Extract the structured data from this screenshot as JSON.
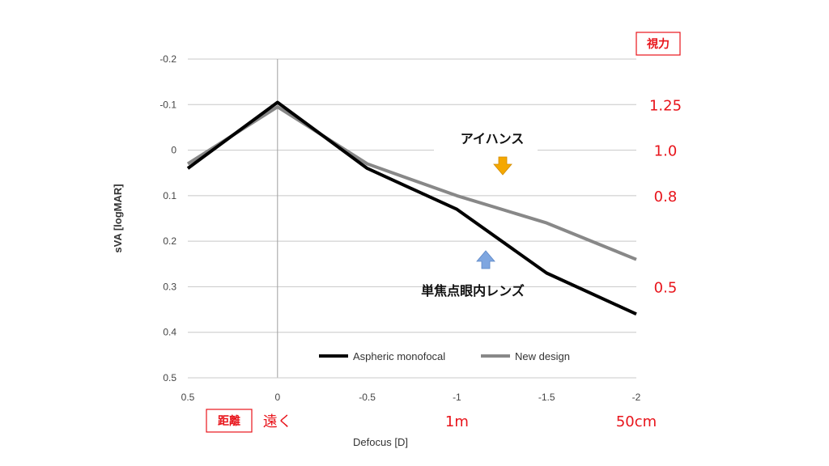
{
  "chart_data": {
    "type": "line",
    "xlabel": "Defocus [D]",
    "ylabel": "sVA [logMAR]",
    "xlim": [
      0.5,
      -2
    ],
    "ylim": [
      -0.2,
      0.5
    ],
    "y_inverted": true,
    "x_ticks": [
      "0.5",
      "0",
      "-0.5",
      "-1",
      "-1.5",
      "-2"
    ],
    "x_tick_values": [
      0.5,
      0,
      -0.5,
      -1,
      -1.5,
      -2
    ],
    "y_ticks": [
      "-0.2",
      "-0.1",
      "0",
      "0.1",
      "0.2",
      "0.3",
      "0.4",
      "0.5"
    ],
    "y_tick_values": [
      -0.2,
      -0.1,
      0,
      0.1,
      0.2,
      0.3,
      0.4,
      0.5
    ],
    "grid": "horizontal",
    "legend_position": "bottom-center",
    "series": [
      {
        "name": "Aspheric monofocal",
        "color": "#000000",
        "x": [
          0.5,
          0,
          -0.5,
          -1,
          -1.5,
          -2
        ],
        "y": [
          0.04,
          -0.105,
          0.04,
          0.13,
          0.27,
          0.36
        ]
      },
      {
        "name": "New design",
        "color": "#888888",
        "x": [
          0.5,
          0,
          -0.5,
          -1,
          -1.5,
          -2
        ],
        "y": [
          0.03,
          -0.095,
          0.03,
          0.1,
          0.16,
          0.24
        ]
      }
    ],
    "secondary_axis": {
      "title": "視力",
      "labels": [
        {
          "text": "1.25",
          "logmar": -0.1
        },
        {
          "text": "1.0",
          "logmar": 0
        },
        {
          "text": "0.8",
          "logmar": 0.1
        },
        {
          "text": "0.5",
          "logmar": 0.3
        }
      ]
    },
    "distance_labels": {
      "title": "距離",
      "labels": [
        {
          "text": "遠く",
          "defocus": 0
        },
        {
          "text": "1m",
          "defocus": -1
        },
        {
          "text": "50cm",
          "defocus": -2
        }
      ]
    },
    "annotations": [
      {
        "text": "アイハンス",
        "arrow": "down",
        "arrow_color": "#f5a800"
      },
      {
        "text": "単焦点眼内レンズ",
        "arrow": "up",
        "arrow_color": "#7ea6e0"
      }
    ]
  }
}
